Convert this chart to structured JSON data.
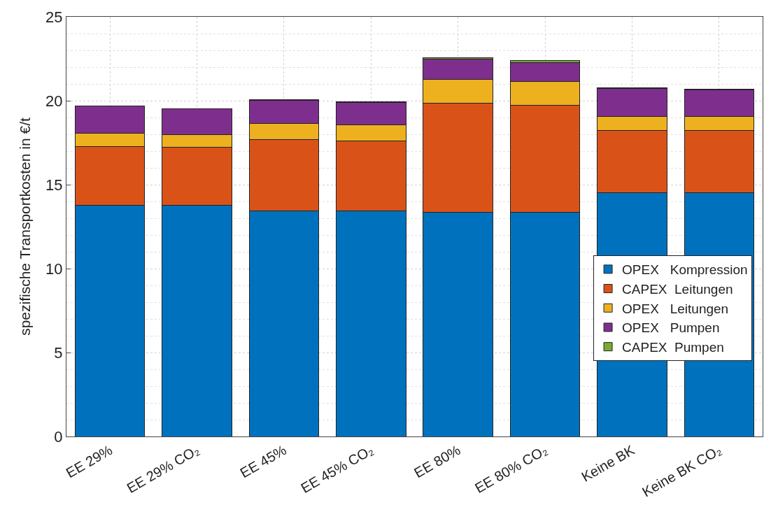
{
  "chart_data": {
    "type": "bar",
    "stacked": true,
    "ylabel": "spezifische Transportkosten in €/t",
    "categories": [
      "EE 29%",
      "EE 29% CO₂",
      "EE 45%",
      "EE 45% CO₂",
      "EE 80%",
      "EE 80% CO₂",
      "Keine BK",
      "Keine BK CO₂"
    ],
    "series": [
      {
        "name": "OPEX   Kompression",
        "color": "#0072bd",
        "values": [
          13.76,
          13.76,
          13.42,
          13.42,
          13.35,
          13.35,
          14.52,
          14.52
        ]
      },
      {
        "name": "CAPEX  Leitungen",
        "color": "#d95319",
        "values": [
          3.53,
          3.46,
          4.26,
          4.2,
          6.49,
          6.4,
          3.71,
          3.71
        ]
      },
      {
        "name": "OPEX   Leitungen",
        "color": "#edb120",
        "values": [
          0.79,
          0.78,
          0.96,
          0.93,
          1.45,
          1.41,
          0.82,
          0.82
        ]
      },
      {
        "name": "OPEX   Pumpen",
        "color": "#7e2f8e",
        "values": [
          1.6,
          1.54,
          1.38,
          1.33,
          1.17,
          1.12,
          1.67,
          1.6
        ]
      },
      {
        "name": "CAPEX  Pumpen",
        "color": "#77ac30",
        "values": [
          0.02,
          null,
          0.05,
          0.05,
          0.1,
          0.1,
          0.05,
          0.05
        ]
      }
    ],
    "ylim": [
      0,
      25
    ],
    "yticks": [
      0,
      5,
      10,
      15,
      20,
      25
    ],
    "grid": true,
    "legend": "bottom right"
  }
}
